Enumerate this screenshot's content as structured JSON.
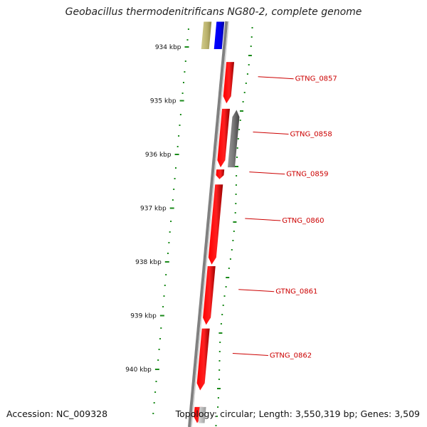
{
  "title": "Geobacillus thermodenitrificans NG80-2, complete genome",
  "footer": {
    "accession": "Accession: NC_009328",
    "summary": "Topology: circular; Length: 3,550,319 bp; Genes: 3,509"
  },
  "colors": {
    "forward_gene": "#ff0000",
    "reverse_gene": "#777777",
    "blue_feature": "#0000ff",
    "olive_feature": "#b8b06a",
    "backbone": "#808080",
    "gc_dots": "#1a8a1a",
    "label_line": "#cc0000"
  },
  "axis_labels": [
    {
      "kb": 934,
      "text": "934 kbp"
    },
    {
      "kb": 935,
      "text": "935 kbp"
    },
    {
      "kb": 936,
      "text": "936 kbp"
    },
    {
      "kb": 937,
      "text": "937 kbp"
    },
    {
      "kb": 938,
      "text": "938 kbp"
    },
    {
      "kb": 939,
      "text": "939 kbp"
    },
    {
      "kb": 940,
      "text": "940 kbp"
    }
  ],
  "genes": [
    {
      "name": "",
      "start": 933.53,
      "end": 934.04,
      "type": "olive"
    },
    {
      "name": "",
      "start": 933.53,
      "end": 934.04,
      "type": "blue"
    },
    {
      "name": "GTNG_0857",
      "start": 934.28,
      "end": 935.05,
      "type": "forward"
    },
    {
      "name": "GTNG_0858",
      "start": 935.15,
      "end": 936.24,
      "type": "forward"
    },
    {
      "name": "",
      "start": 935.17,
      "end": 936.24,
      "type": "reverse"
    },
    {
      "name": "GTNG_0859",
      "start": 936.28,
      "end": 936.46,
      "type": "forward"
    },
    {
      "name": "GTNG_0860",
      "start": 936.56,
      "end": 938.05,
      "type": "forward"
    },
    {
      "name": "GTNG_0861",
      "start": 938.08,
      "end": 939.17,
      "type": "forward"
    },
    {
      "name": "GTNG_0862",
      "start": 939.24,
      "end": 940.39,
      "type": "forward"
    },
    {
      "name": "",
      "start": 940.7,
      "end": 941.0,
      "type": "forward"
    },
    {
      "name": "",
      "start": 940.7,
      "end": 941.0,
      "type": "light"
    }
  ]
}
